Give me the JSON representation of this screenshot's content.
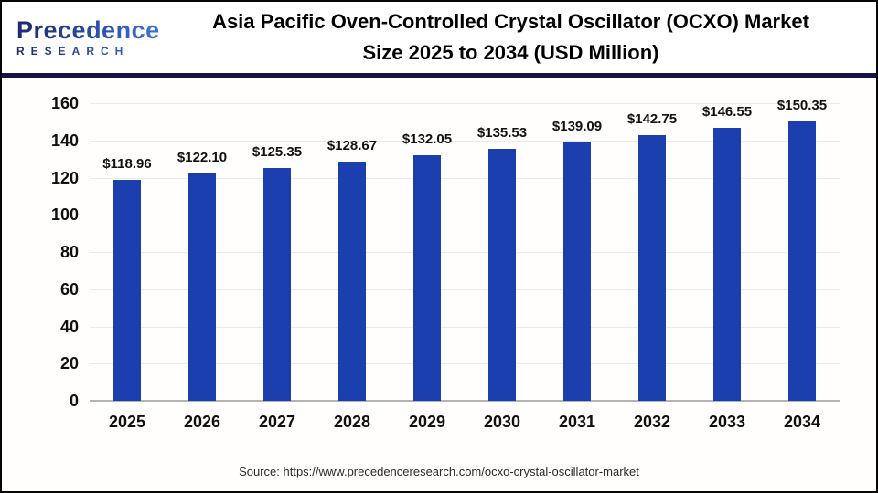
{
  "header": {
    "logo": {
      "name": "Precedence",
      "sub": "RESEARCH"
    },
    "title_line1": "Asia Pacific Oven-Controlled Crystal Oscillator (OCXO) Market",
    "title_line2": "Size 2025 to 2034 (USD Million)"
  },
  "chart_data": {
    "type": "bar",
    "title": "Asia Pacific Oven-Controlled Crystal Oscillator (OCXO) Market Size 2025 to 2034 (USD Million)",
    "categories": [
      "2025",
      "2026",
      "2027",
      "2028",
      "2029",
      "2030",
      "2031",
      "2032",
      "2033",
      "2034"
    ],
    "values": [
      118.96,
      122.1,
      125.35,
      128.67,
      132.05,
      135.53,
      139.09,
      142.75,
      146.55,
      150.35
    ],
    "value_labels": [
      "$118.96",
      "$122.10",
      "$125.35",
      "$128.67",
      "$132.05",
      "$135.53",
      "$139.09",
      "$142.75",
      "$146.55",
      "$150.35"
    ],
    "xlabel": "",
    "ylabel": "",
    "ylim": [
      0,
      160
    ],
    "ytick_step": 20,
    "grid": true,
    "legend": false
  },
  "footer": {
    "source": "Source: https://www.precedenceresearch.com/ocxo-crystal-oscillator-market"
  },
  "colors": {
    "bar": "#1b3fae",
    "divider": "#141344",
    "grid": "#eaeaea",
    "axis_line": "#b3b3b3",
    "title_text": "#000000",
    "label_text": "#101010"
  }
}
